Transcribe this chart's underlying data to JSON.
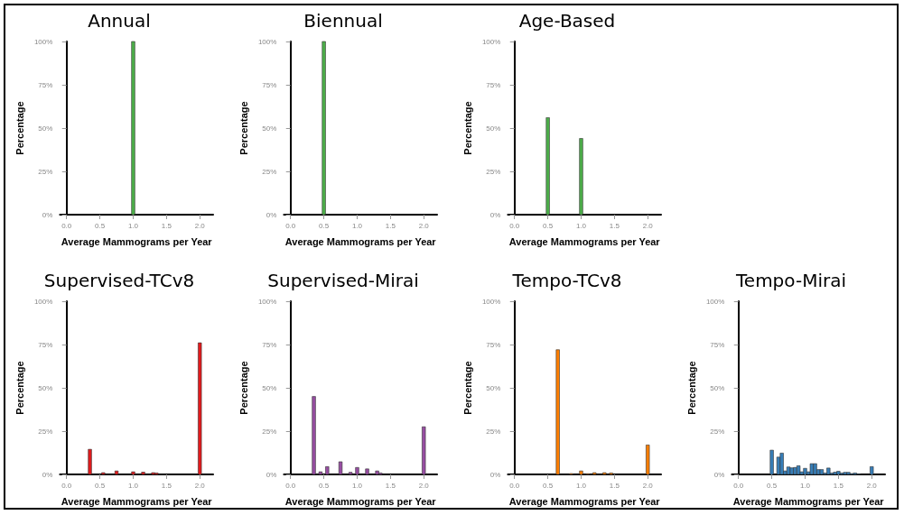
{
  "chart_data": [
    {
      "type": "histogram",
      "title": "Annual",
      "xlabel": "Average Mammograms per Year",
      "ylabel": "Percentage",
      "color": "#4daf4a",
      "grid": false,
      "bins": [
        0.275,
        0.325,
        0.375,
        0.425,
        0.475,
        0.525,
        0.575,
        0.625,
        0.675,
        0.725,
        0.775,
        0.825,
        0.875,
        0.925,
        0.975,
        1.025,
        1.075,
        1.125,
        1.175,
        1.225,
        1.275,
        1.325,
        1.375,
        1.425,
        1.475,
        1.525,
        1.575,
        1.625,
        1.675,
        1.725,
        1.775,
        1.825,
        1.875,
        1.925,
        1.975,
        2.025
      ],
      "values": [
        0,
        0,
        0,
        0,
        0,
        0,
        0,
        0,
        0,
        0,
        0,
        0,
        0,
        0,
        100,
        0,
        0,
        0,
        0,
        0,
        0,
        0,
        0,
        0,
        0,
        0,
        0,
        0,
        0,
        0,
        0,
        0,
        0,
        0,
        0
      ],
      "xlim": [
        -0.1,
        2.2
      ],
      "xticks": [
        {
          "value": 0,
          "label": "0.0"
        },
        {
          "value": 0.5,
          "label": "0.5"
        },
        {
          "value": 1,
          "label": "1.0"
        },
        {
          "value": 1.5,
          "label": "1.5"
        },
        {
          "value": 2,
          "label": "2.0"
        }
      ],
      "ylim": [
        0,
        100
      ],
      "yticks": [
        {
          "value": 0,
          "label": "0%"
        },
        {
          "value": 25,
          "label": "25%"
        },
        {
          "value": 50,
          "label": "50%"
        },
        {
          "value": 75,
          "label": "75%"
        },
        {
          "value": 100,
          "label": "100%"
        }
      ]
    },
    {
      "type": "histogram",
      "title": "Biennual",
      "xlabel": "Average Mammograms per Year",
      "ylabel": "Percentage",
      "color": "#4daf4a",
      "grid": false,
      "bins": [
        0.275,
        0.325,
        0.375,
        0.425,
        0.475,
        0.525,
        0.575,
        0.625,
        0.675,
        0.725,
        0.775,
        0.825,
        0.875,
        0.925,
        0.975,
        1.025,
        1.075,
        1.125,
        1.175,
        1.225,
        1.275,
        1.325,
        1.375,
        1.425,
        1.475,
        1.525,
        1.575,
        1.625,
        1.675,
        1.725,
        1.775,
        1.825,
        1.875,
        1.925,
        1.975,
        2.025
      ],
      "values": [
        0,
        0,
        0,
        0,
        100,
        0,
        0,
        0,
        0,
        0,
        0,
        0,
        0,
        0,
        0,
        0,
        0,
        0,
        0,
        0,
        0,
        0,
        0,
        0,
        0,
        0,
        0,
        0,
        0,
        0,
        0,
        0,
        0,
        0,
        0
      ],
      "xlim": [
        -0.1,
        2.2
      ],
      "xticks": [
        {
          "value": 0,
          "label": "0.0"
        },
        {
          "value": 0.5,
          "label": "0.5"
        },
        {
          "value": 1,
          "label": "1.0"
        },
        {
          "value": 1.5,
          "label": "1.5"
        },
        {
          "value": 2,
          "label": "2.0"
        }
      ],
      "ylim": [
        0,
        100
      ],
      "yticks": [
        {
          "value": 0,
          "label": "0%"
        },
        {
          "value": 25,
          "label": "25%"
        },
        {
          "value": 50,
          "label": "50%"
        },
        {
          "value": 75,
          "label": "75%"
        },
        {
          "value": 100,
          "label": "100%"
        }
      ]
    },
    {
      "type": "histogram",
      "title": "Age-Based",
      "xlabel": "Average Mammograms per Year",
      "ylabel": "Percentage",
      "color": "#4daf4a",
      "grid": false,
      "bins": [
        0.275,
        0.325,
        0.375,
        0.425,
        0.475,
        0.525,
        0.575,
        0.625,
        0.675,
        0.725,
        0.775,
        0.825,
        0.875,
        0.925,
        0.975,
        1.025,
        1.075,
        1.125,
        1.175,
        1.225,
        1.275,
        1.325,
        1.375,
        1.425,
        1.475,
        1.525,
        1.575,
        1.625,
        1.675,
        1.725,
        1.775,
        1.825,
        1.875,
        1.925,
        1.975,
        2.025
      ],
      "values": [
        0,
        0,
        0,
        0,
        56,
        0,
        0,
        0,
        0,
        0,
        0,
        0,
        0,
        0,
        44,
        0,
        0,
        0,
        0,
        0,
        0,
        0,
        0,
        0,
        0,
        0,
        0,
        0,
        0,
        0,
        0,
        0,
        0,
        0,
        0
      ],
      "xlim": [
        -0.1,
        2.2
      ],
      "xticks": [
        {
          "value": 0,
          "label": "0.0"
        },
        {
          "value": 0.5,
          "label": "0.5"
        },
        {
          "value": 1,
          "label": "1.0"
        },
        {
          "value": 1.5,
          "label": "1.5"
        },
        {
          "value": 2,
          "label": "2.0"
        }
      ],
      "ylim": [
        0,
        100
      ],
      "yticks": [
        {
          "value": 0,
          "label": "0%"
        },
        {
          "value": 25,
          "label": "25%"
        },
        {
          "value": 50,
          "label": "50%"
        },
        {
          "value": 75,
          "label": "75%"
        },
        {
          "value": 100,
          "label": "100%"
        }
      ]
    },
    {
      "type": "histogram",
      "title": "Supervised-TCv8",
      "xlabel": "Average Mammograms per Year",
      "ylabel": "Percentage",
      "color": "#e41a1c",
      "grid": false,
      "bins": [
        0.275,
        0.325,
        0.375,
        0.425,
        0.475,
        0.525,
        0.575,
        0.625,
        0.675,
        0.725,
        0.775,
        0.825,
        0.875,
        0.925,
        0.975,
        1.025,
        1.075,
        1.125,
        1.175,
        1.225,
        1.275,
        1.325,
        1.375,
        1.425,
        1.475,
        1.525,
        1.575,
        1.625,
        1.675,
        1.725,
        1.775,
        1.825,
        1.875,
        1.925,
        1.975,
        2.025
      ],
      "values": [
        0,
        14.5,
        0,
        0,
        0,
        1,
        0,
        0,
        0,
        2,
        0,
        0,
        0,
        0,
        1.5,
        0,
        0,
        1.3,
        0,
        0,
        1,
        0.8,
        0,
        0,
        0,
        0,
        0,
        0,
        0,
        0,
        0,
        0,
        0,
        0,
        76
      ],
      "xlim": [
        -0.1,
        2.2
      ],
      "xticks": [
        {
          "value": 0,
          "label": "0.0"
        },
        {
          "value": 0.5,
          "label": "0.5"
        },
        {
          "value": 1,
          "label": "1.0"
        },
        {
          "value": 1.5,
          "label": "1.5"
        },
        {
          "value": 2,
          "label": "2.0"
        }
      ],
      "ylim": [
        0,
        100
      ],
      "yticks": [
        {
          "value": 0,
          "label": "0%"
        },
        {
          "value": 25,
          "label": "25%"
        },
        {
          "value": 50,
          "label": "50%"
        },
        {
          "value": 75,
          "label": "75%"
        },
        {
          "value": 100,
          "label": "100%"
        }
      ]
    },
    {
      "type": "histogram",
      "title": "Supervised-Mirai",
      "xlabel": "Average Mammograms per Year",
      "ylabel": "Percentage",
      "color": "#984ea3",
      "grid": false,
      "bins": [
        0.275,
        0.325,
        0.375,
        0.425,
        0.475,
        0.525,
        0.575,
        0.625,
        0.675,
        0.725,
        0.775,
        0.825,
        0.875,
        0.925,
        0.975,
        1.025,
        1.075,
        1.125,
        1.175,
        1.225,
        1.275,
        1.325,
        1.375,
        1.425,
        1.475,
        1.525,
        1.575,
        1.625,
        1.675,
        1.725,
        1.775,
        1.825,
        1.875,
        1.925,
        1.975,
        2.025
      ],
      "values": [
        0,
        45,
        0,
        1.5,
        0,
        4.5,
        0,
        0,
        0,
        7.3,
        0,
        0,
        1.2,
        0,
        4,
        0,
        0,
        3.2,
        0,
        0,
        2,
        0.8,
        0,
        0,
        0,
        0,
        0,
        0,
        0,
        0,
        0,
        0,
        0,
        0,
        27.5
      ],
      "xlim": [
        -0.1,
        2.2
      ],
      "xticks": [
        {
          "value": 0,
          "label": "0.0"
        },
        {
          "value": 0.5,
          "label": "0.5"
        },
        {
          "value": 1,
          "label": "1.0"
        },
        {
          "value": 1.5,
          "label": "1.5"
        },
        {
          "value": 2,
          "label": "2.0"
        }
      ],
      "ylim": [
        0,
        100
      ],
      "yticks": [
        {
          "value": 0,
          "label": "0%"
        },
        {
          "value": 25,
          "label": "25%"
        },
        {
          "value": 50,
          "label": "50%"
        },
        {
          "value": 75,
          "label": "75%"
        },
        {
          "value": 100,
          "label": "100%"
        }
      ]
    },
    {
      "type": "histogram",
      "title": "Tempo-TCv8",
      "xlabel": "Average Mammograms per Year",
      "ylabel": "Percentage",
      "color": "#ff7f00",
      "grid": false,
      "bins": [
        0.275,
        0.325,
        0.375,
        0.425,
        0.475,
        0.525,
        0.575,
        0.625,
        0.675,
        0.725,
        0.775,
        0.825,
        0.875,
        0.925,
        0.975,
        1.025,
        1.075,
        1.125,
        1.175,
        1.225,
        1.275,
        1.325,
        1.375,
        1.425,
        1.475,
        1.525,
        1.575,
        1.625,
        1.675,
        1.725,
        1.775,
        1.825,
        1.875,
        1.925,
        1.975,
        2.025
      ],
      "values": [
        0,
        0,
        0,
        0,
        0,
        0,
        0,
        72,
        0,
        0,
        0,
        0.5,
        0,
        0,
        2,
        0,
        0.4,
        0,
        1,
        0,
        0,
        1,
        0,
        0.8,
        0,
        0,
        0,
        0,
        0,
        0,
        0,
        0,
        0,
        0,
        17
      ],
      "xlim": [
        -0.1,
        2.2
      ],
      "xticks": [
        {
          "value": 0,
          "label": "0.0"
        },
        {
          "value": 0.5,
          "label": "0.5"
        },
        {
          "value": 1,
          "label": "1.0"
        },
        {
          "value": 1.5,
          "label": "1.5"
        },
        {
          "value": 2,
          "label": "2.0"
        }
      ],
      "ylim": [
        0,
        100
      ],
      "yticks": [
        {
          "value": 0,
          "label": "0%"
        },
        {
          "value": 25,
          "label": "25%"
        },
        {
          "value": 50,
          "label": "50%"
        },
        {
          "value": 75,
          "label": "75%"
        },
        {
          "value": 100,
          "label": "100%"
        }
      ]
    },
    {
      "type": "histogram",
      "title": "Tempo-Mirai",
      "xlabel": "Average Mammograms per Year",
      "ylabel": "Percentage",
      "color": "#377eb8",
      "grid": false,
      "bins": [
        0.275,
        0.325,
        0.375,
        0.425,
        0.475,
        0.525,
        0.575,
        0.625,
        0.675,
        0.725,
        0.775,
        0.825,
        0.875,
        0.925,
        0.975,
        1.025,
        1.075,
        1.125,
        1.175,
        1.225,
        1.275,
        1.325,
        1.375,
        1.425,
        1.475,
        1.525,
        1.575,
        1.625,
        1.675,
        1.725,
        1.775,
        1.825,
        1.875,
        1.925,
        1.975,
        2.025
      ],
      "values": [
        0,
        0,
        0,
        0,
        14,
        0,
        10,
        12.3,
        2,
        4.3,
        3.8,
        4,
        5,
        1.5,
        3.5,
        1.5,
        6.2,
        6.2,
        2.8,
        2.8,
        0.8,
        3.7,
        0.8,
        1.3,
        1.8,
        0.8,
        1.2,
        1.2,
        0.5,
        0.8,
        0.3,
        null,
        0,
        0,
        4.5
      ],
      "xlim": [
        -0.1,
        2.2
      ],
      "xticks": [
        {
          "value": 0,
          "label": "0.0"
        },
        {
          "value": 0.5,
          "label": "0.5"
        },
        {
          "value": 1,
          "label": "1.0"
        },
        {
          "value": 1.5,
          "label": "1.5"
        },
        {
          "value": 2,
          "label": "2.0"
        }
      ],
      "ylim": [
        0,
        100
      ],
      "yticks": [
        {
          "value": 0,
          "label": "0%"
        },
        {
          "value": 25,
          "label": "25%"
        },
        {
          "value": 50,
          "label": "50%"
        },
        {
          "value": 75,
          "label": "75%"
        },
        {
          "value": 100,
          "label": "100%"
        }
      ]
    }
  ]
}
